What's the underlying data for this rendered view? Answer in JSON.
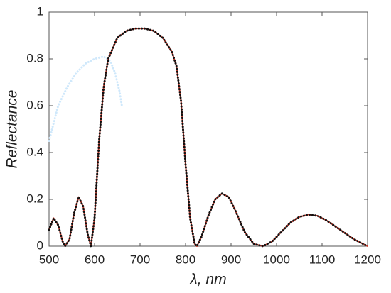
{
  "chart_data": {
    "type": "line",
    "x_label": "λ, nm",
    "y_label": "Reflectance",
    "x": [
      500,
      510,
      520,
      530,
      535,
      545,
      555,
      565,
      575,
      585,
      592,
      600,
      610,
      620,
      630,
      650,
      670,
      690,
      710,
      730,
      750,
      770,
      780,
      790,
      800,
      810,
      820,
      825,
      835,
      850,
      865,
      880,
      895,
      910,
      930,
      950,
      970,
      990,
      1010,
      1030,
      1050,
      1070,
      1090,
      1110,
      1140,
      1170,
      1200
    ],
    "series": [
      {
        "color": "#cfe8fb",
        "style": "dotted",
        "x": [
          500,
          520,
          540,
          560,
          580,
          600,
          620,
          635,
          645,
          655,
          660
        ],
        "values": [
          0.45,
          0.6,
          0.68,
          0.74,
          0.78,
          0.8,
          0.81,
          0.79,
          0.74,
          0.66,
          0.6
        ]
      },
      {
        "color": "#c0392b",
        "style": "solid",
        "values": [
          0.07,
          0.12,
          0.09,
          0.02,
          0.0,
          0.03,
          0.14,
          0.21,
          0.17,
          0.05,
          0.0,
          0.12,
          0.45,
          0.68,
          0.8,
          0.89,
          0.92,
          0.93,
          0.93,
          0.92,
          0.89,
          0.83,
          0.77,
          0.62,
          0.35,
          0.12,
          0.01,
          0.0,
          0.04,
          0.13,
          0.2,
          0.225,
          0.21,
          0.15,
          0.06,
          0.01,
          0.0,
          0.02,
          0.06,
          0.1,
          0.125,
          0.135,
          0.13,
          0.11,
          0.07,
          0.03,
          0.0
        ]
      },
      {
        "color": "#111111",
        "style": "dotted",
        "values": [
          0.07,
          0.12,
          0.09,
          0.02,
          0.0,
          0.03,
          0.14,
          0.21,
          0.17,
          0.05,
          0.0,
          0.12,
          0.45,
          0.68,
          0.8,
          0.89,
          0.92,
          0.93,
          0.93,
          0.92,
          0.89,
          0.83,
          0.77,
          0.62,
          0.35,
          0.12,
          0.01,
          0.0,
          0.04,
          0.13,
          0.2,
          0.225,
          0.21,
          0.15,
          0.06,
          0.01,
          0.0,
          0.02,
          0.06,
          0.1,
          0.125,
          0.135,
          0.13,
          0.11,
          0.07,
          0.03,
          0.0
        ]
      }
    ],
    "xlim": [
      500,
      1200
    ],
    "ylim": [
      0,
      1
    ],
    "xticks": [
      500,
      600,
      700,
      800,
      900,
      1000,
      1100,
      1200
    ],
    "yticks": [
      0,
      0.2,
      0.4,
      0.6,
      0.8,
      1
    ]
  }
}
